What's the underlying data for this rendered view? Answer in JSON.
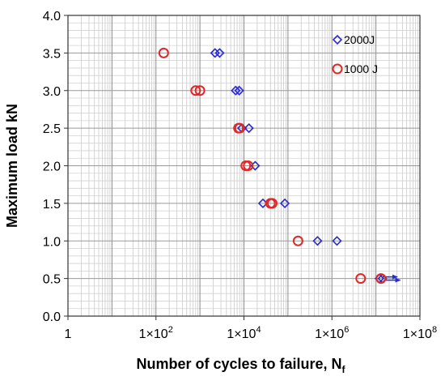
{
  "chart_data": {
    "type": "scatter",
    "xscale": "log",
    "xlim": [
      1,
      100000000
    ],
    "ylim": [
      0.0,
      4.0
    ],
    "grid": true,
    "legend_position": "top-right",
    "xlabel": "Number of cycles to failure, N",
    "xlabel_subscript": "f",
    "ylabel": "Maximum load  kN",
    "x_ticks": [
      {
        "value": 1,
        "label": "1"
      },
      {
        "value": 100,
        "base": "1×10",
        "exp": "2"
      },
      {
        "value": 10000,
        "base": "1×10",
        "exp": "4"
      },
      {
        "value": 1000000,
        "base": "1×10",
        "exp": "6"
      },
      {
        "value": 100000000,
        "base": "1×10",
        "exp": "8"
      }
    ],
    "y_ticks": [
      {
        "value": 0.0,
        "label": "0.0"
      },
      {
        "value": 0.5,
        "label": "0.5"
      },
      {
        "value": 1.0,
        "label": "1.0"
      },
      {
        "value": 1.5,
        "label": "1.5"
      },
      {
        "value": 2.0,
        "label": "2.0"
      },
      {
        "value": 2.5,
        "label": "2.5"
      },
      {
        "value": 3.0,
        "label": "3.0"
      },
      {
        "value": 3.5,
        "label": "3.5"
      },
      {
        "value": 4.0,
        "label": "4.0"
      }
    ],
    "series": [
      {
        "name": "2000J",
        "marker": "diamond",
        "color": "#2b2bd6",
        "points": [
          {
            "x": 2200,
            "y": 3.5
          },
          {
            "x": 2800,
            "y": 3.5
          },
          {
            "x": 6500,
            "y": 3.0
          },
          {
            "x": 7800,
            "y": 3.0
          },
          {
            "x": 9000,
            "y": 2.5
          },
          {
            "x": 13000,
            "y": 2.5
          },
          {
            "x": 18000,
            "y": 2.0
          },
          {
            "x": 27000,
            "y": 1.5
          },
          {
            "x": 85000,
            "y": 1.5
          },
          {
            "x": 470000,
            "y": 1.0
          },
          {
            "x": 1300000,
            "y": 1.0
          },
          {
            "x": 12000000,
            "y": 0.5,
            "runout": true
          },
          {
            "x": 14000000,
            "y": 0.5,
            "runout": true
          }
        ]
      },
      {
        "name": "1000 J",
        "marker": "circle",
        "color": "#e02828",
        "points": [
          {
            "x": 150,
            "y": 3.5
          },
          {
            "x": 800,
            "y": 3.0
          },
          {
            "x": 1000,
            "y": 3.0
          },
          {
            "x": 7500,
            "y": 2.5
          },
          {
            "x": 8000,
            "y": 2.5
          },
          {
            "x": 11000,
            "y": 2.0
          },
          {
            "x": 12500,
            "y": 2.0
          },
          {
            "x": 40000,
            "y": 1.5
          },
          {
            "x": 44000,
            "y": 1.5
          },
          {
            "x": 170000,
            "y": 1.0
          },
          {
            "x": 4500000,
            "y": 0.5
          },
          {
            "x": 13000000,
            "y": 0.5
          }
        ]
      }
    ]
  }
}
